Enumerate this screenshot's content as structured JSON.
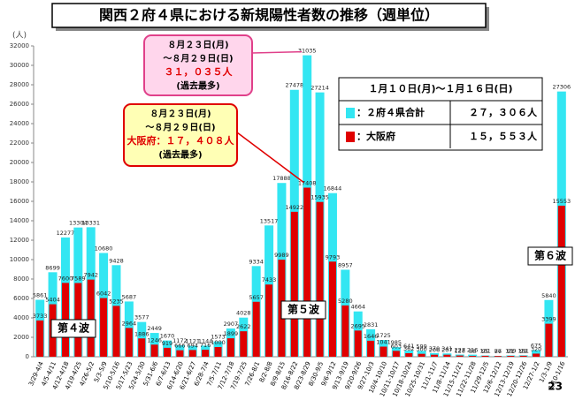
{
  "chart_data": {
    "type": "bar",
    "title": "関西２府４県における新規陽性者数の推移（週単位）",
    "y_unit": "(人)",
    "categories": [
      "3/29-4/4",
      "4/5-4/11",
      "4/12-4/18",
      "4/19-4/25",
      "4/26-5/2",
      "5/3-5/9",
      "5/10-5/16",
      "5/17-5/23",
      "5/24-5/30",
      "5/31-6/6",
      "6/7-6/13",
      "6/14-6/20",
      "6/21-6/27",
      "6/28-7/4",
      "7/5-7/11",
      "7/12-7/18",
      "7/19-7/25",
      "7/26-8/1",
      "8/2-8/8",
      "8/9-8/15",
      "8/16-8/22",
      "8/23-8/29",
      "8/30-9/5",
      "9/6-9/12",
      "9/13-9/19",
      "9/20-9/26",
      "9/27-10/3",
      "10/4-10/10",
      "10/11-10/17",
      "10/18-10/24",
      "10/25-10/31",
      "11/1-11/7",
      "11/8-11/14",
      "11/15-11/21",
      "11/22-11/28",
      "11/29-12/5",
      "12/6-12/12",
      "12/13-12/19",
      "12/20-12/26",
      "12/27-1/2",
      "1/3-1/9",
      "1/10-1/16"
    ],
    "series": [
      {
        "name": "：２府４県合計",
        "color": "#33e6f2",
        "values": [
          5861,
          8699,
          12277,
          13304,
          13331,
          10680,
          9428,
          5687,
          3577,
          2449,
          1670,
          1172,
          1121,
          1144,
          1573,
          2907,
          4028,
          9334,
          13517,
          17888,
          27478,
          31035,
          27214,
          16844,
          8957,
          4664,
          2831,
          1725,
          985,
          641,
          599,
          370,
          341,
          227,
          216,
          131,
          86,
          139,
          151,
          675,
          5840,
          27306
        ]
      },
      {
        "name": "：大阪府",
        "color": "#e00000",
        "values": [
          3733,
          5404,
          7600,
          7589,
          7942,
          6042,
          5235,
          2964,
          1886,
          1246,
          919,
          666,
          694,
          716,
          1000,
          1899,
          2622,
          5657,
          7433,
          9989,
          14922,
          17408,
          15935,
          9793,
          5280,
          2695,
          1646,
          1041,
          603,
          362,
          300,
          206,
          207,
          128,
          88,
          95,
          77,
          91,
          99,
          320,
          3399,
          15553
        ]
      }
    ],
    "ylim": [
      0,
      32000
    ],
    "yticks": [
      0,
      2000,
      4000,
      6000,
      8000,
      10000,
      12000,
      14000,
      16000,
      18000,
      20000,
      22000,
      24000,
      26000,
      28000,
      30000,
      32000
    ],
    "callouts": [
      {
        "lines": [
          "８月２３日(月)",
          "～８月２９日(日)",
          "３１，０３５人",
          "(過去最多)"
        ]
      },
      {
        "lines": [
          "８月２３日(月)",
          "～８月２９日(日)",
          "大阪府：１７，４０８人",
          "(過去最多)"
        ]
      }
    ],
    "legend_table": {
      "title": "１月１０日(月)～１月１６日(日)",
      "totals": [
        "２７，３０６人",
        "１５，５５３人"
      ]
    },
    "waves": [
      "第４波",
      "第５波",
      "第６波"
    ]
  },
  "page_number": "23"
}
